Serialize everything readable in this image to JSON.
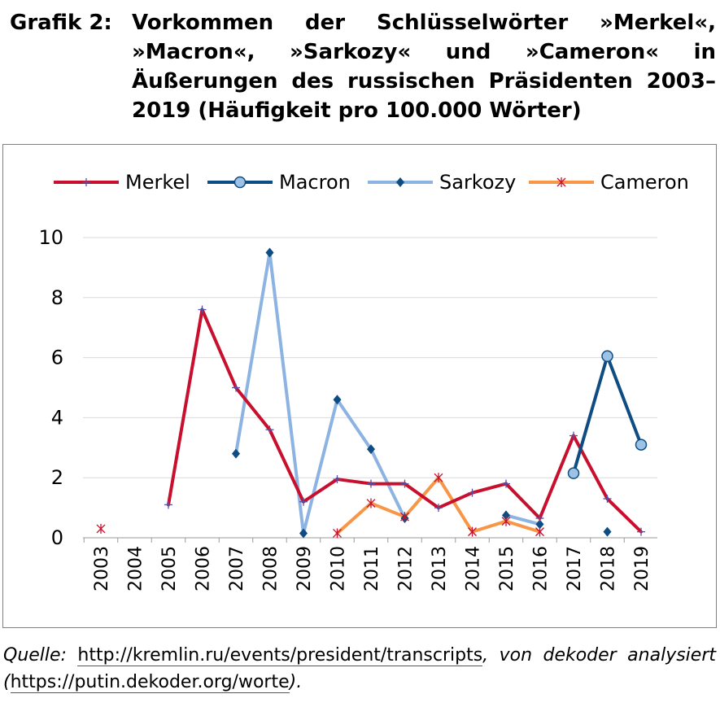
{
  "caption": {
    "label": "Grafik 2:",
    "text": "Vorkommen der Schlüsselwörter »Merkel«, »Macron«, »Sarkozy« und »Cameron« in Äußerungen des russischen Präsidenten 2003–2019 (Häufigkeit pro 100.000 Wörter)"
  },
  "source": {
    "prefix": "Quelle:",
    "url1": "http://kremlin.ru/events/president/transcripts",
    "middle": ", von dekoder analysiert (",
    "url2": "https://putin.dekoder.org/worte",
    "suffix": ")."
  },
  "chart_data": {
    "type": "line",
    "categories": [
      "2003",
      "2004",
      "2005",
      "2006",
      "2007",
      "2008",
      "2009",
      "2010",
      "2011",
      "2012",
      "2013",
      "2014",
      "2015",
      "2016",
      "2017",
      "2018",
      "2019"
    ],
    "ylim": [
      0,
      10
    ],
    "yticks": [
      "0",
      "2",
      "4",
      "6",
      "8",
      "10"
    ],
    "grid": true,
    "legend_position": "top",
    "series": [
      {
        "name": "Merkel",
        "color": "#c8102e",
        "marker": "plus",
        "values": [
          null,
          null,
          1.1,
          7.6,
          5.0,
          3.6,
          1.2,
          1.95,
          1.8,
          1.8,
          1.0,
          1.5,
          1.8,
          0.65,
          3.4,
          1.3,
          0.2
        ]
      },
      {
        "name": "Macron",
        "color": "#0f4c81",
        "marker": "circle",
        "values": [
          null,
          null,
          null,
          null,
          null,
          null,
          null,
          null,
          null,
          null,
          null,
          null,
          null,
          null,
          2.15,
          6.05,
          3.1
        ]
      },
      {
        "name": "Sarkozy",
        "color": "#8db3e2",
        "marker": "diamond",
        "marker_color": "#0f4c81",
        "values": [
          null,
          null,
          null,
          null,
          2.8,
          9.5,
          0.15,
          4.6,
          2.95,
          0.65,
          null,
          null,
          0.75,
          0.45,
          null,
          0.2,
          null
        ]
      },
      {
        "name": "Cameron",
        "color": "#f79646",
        "marker": "star",
        "marker_color": "#c8102e",
        "values": [
          0.3,
          null,
          null,
          null,
          null,
          null,
          null,
          0.15,
          1.15,
          0.7,
          2.0,
          0.2,
          0.55,
          0.2,
          null,
          null,
          null
        ]
      }
    ]
  }
}
